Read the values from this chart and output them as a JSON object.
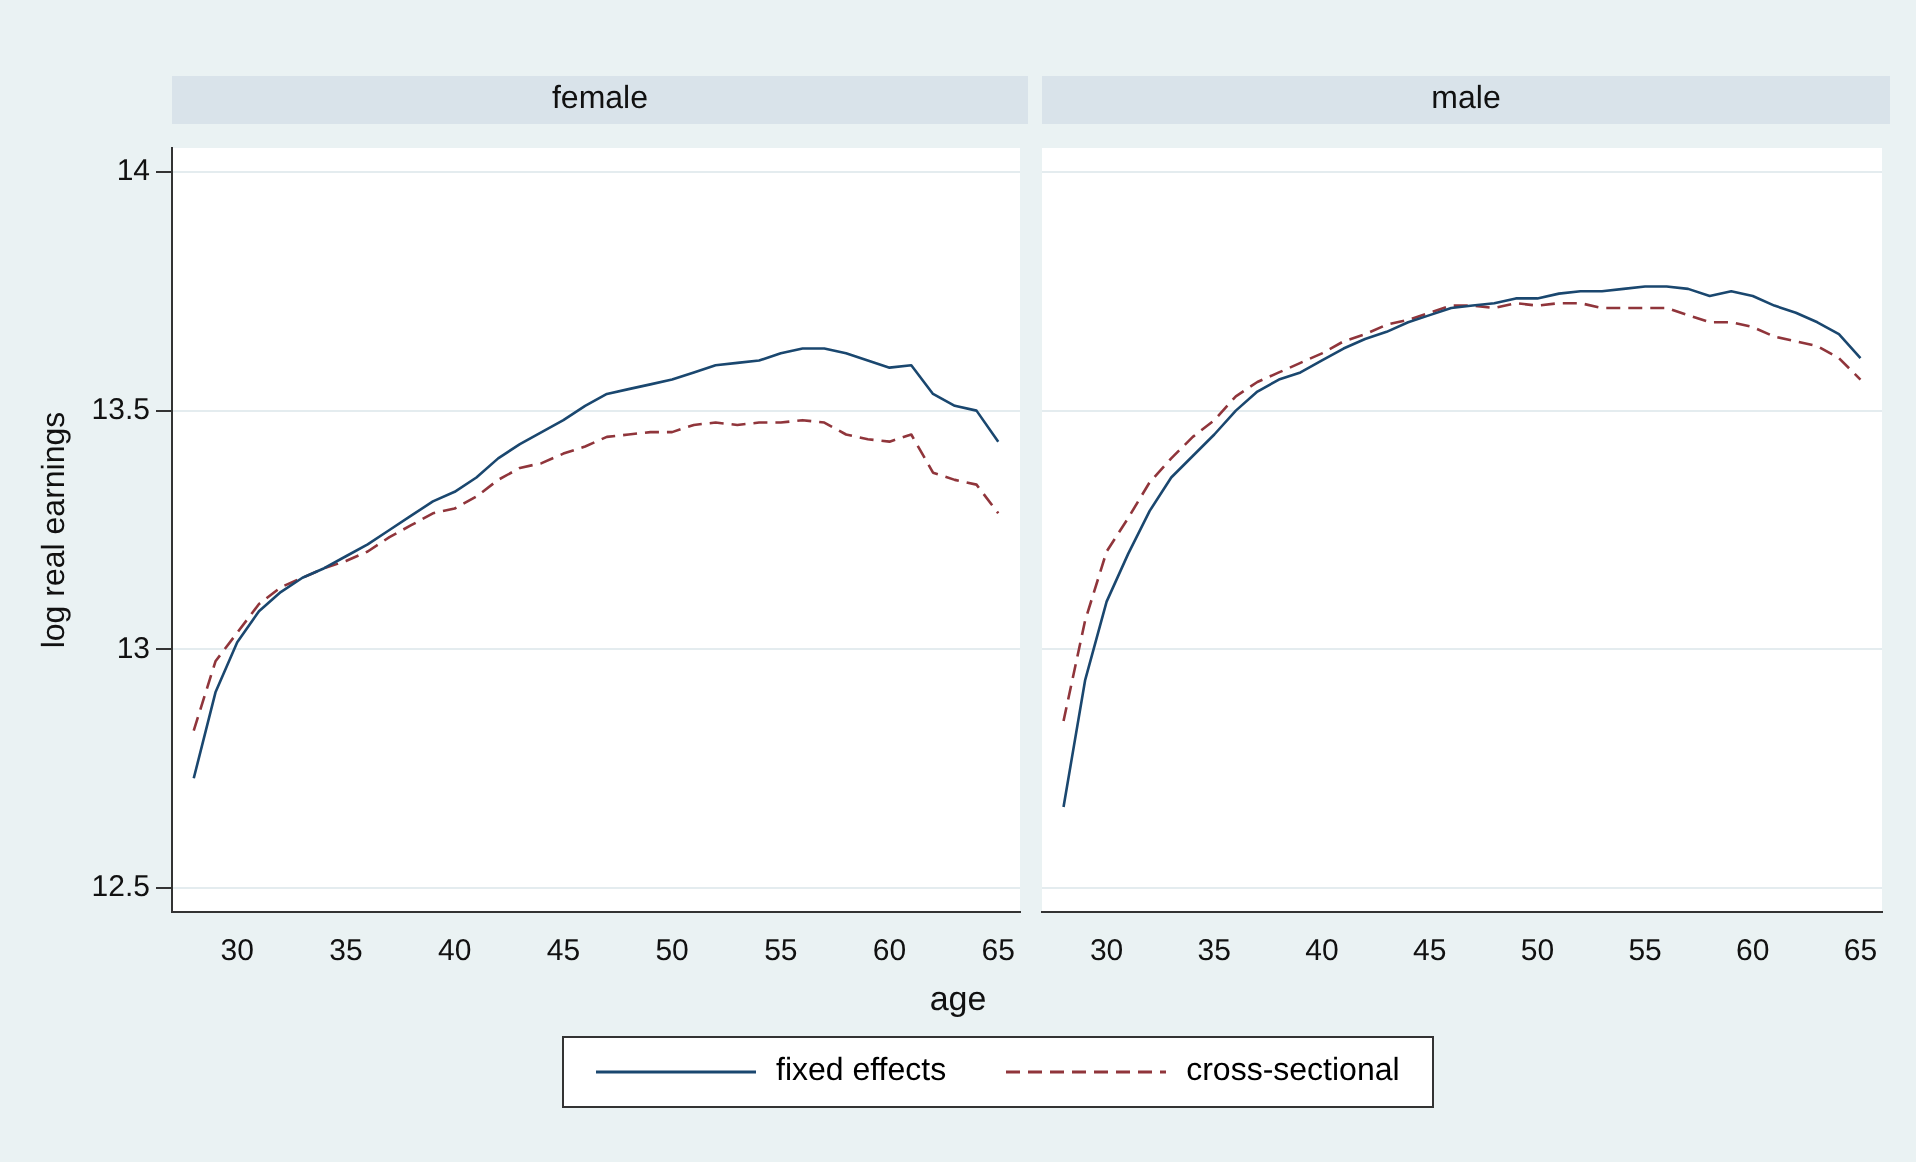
{
  "chart_data": [
    {
      "type": "line",
      "title": "female",
      "xlabel": "age",
      "ylabel": "log real earnings",
      "x": [
        28,
        29,
        30,
        31,
        32,
        33,
        34,
        35,
        36,
        37,
        38,
        39,
        40,
        41,
        42,
        43,
        44,
        45,
        46,
        47,
        48,
        49,
        50,
        51,
        52,
        53,
        54,
        55,
        56,
        57,
        58,
        59,
        60,
        61,
        62,
        63,
        64,
        65
      ],
      "series": [
        {
          "name": "fixed effects",
          "color": "#1a476f",
          "line_style": "solid",
          "values": [
            12.73,
            12.91,
            13.015,
            13.08,
            13.12,
            13.15,
            13.17,
            13.195,
            13.22,
            13.25,
            13.28,
            13.31,
            13.33,
            13.36,
            13.4,
            13.43,
            13.455,
            13.48,
            13.51,
            13.535,
            13.545,
            13.555,
            13.565,
            13.58,
            13.595,
            13.6,
            13.605,
            13.62,
            13.63,
            13.63,
            13.62,
            13.605,
            13.59,
            13.595,
            13.535,
            13.51,
            13.5,
            13.435
          ]
        },
        {
          "name": "cross-sectional",
          "color": "#90353b",
          "line_style": "dashed",
          "values": [
            12.83,
            12.975,
            13.035,
            13.095,
            13.13,
            13.15,
            13.17,
            13.185,
            13.205,
            13.235,
            13.26,
            13.285,
            13.295,
            13.32,
            13.355,
            13.38,
            13.39,
            13.41,
            13.425,
            13.445,
            13.45,
            13.455,
            13.455,
            13.47,
            13.475,
            13.47,
            13.475,
            13.475,
            13.48,
            13.475,
            13.45,
            13.44,
            13.435,
            13.45,
            13.37,
            13.355,
            13.345,
            13.285
          ]
        }
      ],
      "xlim": [
        27,
        66
      ],
      "xticks": [
        30,
        35,
        40,
        45,
        50,
        55,
        60,
        65
      ],
      "ylim": [
        12.45,
        14.05
      ],
      "yticks": [
        12.5,
        13,
        13.5,
        14
      ],
      "grid": "y",
      "marker": "none",
      "legend": "bottom"
    },
    {
      "type": "line",
      "title": "male",
      "x": [
        28,
        29,
        30,
        31,
        32,
        33,
        34,
        35,
        36,
        37,
        38,
        39,
        40,
        41,
        42,
        43,
        44,
        45,
        46,
        47,
        48,
        49,
        50,
        51,
        52,
        53,
        54,
        55,
        56,
        57,
        58,
        59,
        60,
        61,
        62,
        63,
        64,
        65
      ],
      "series": [
        {
          "name": "fixed effects",
          "color": "#1a476f",
          "line_style": "solid",
          "values": [
            12.67,
            12.935,
            13.1,
            13.2,
            13.29,
            13.36,
            13.405,
            13.45,
            13.5,
            13.54,
            13.565,
            13.58,
            13.605,
            13.63,
            13.65,
            13.665,
            13.685,
            13.7,
            13.715,
            13.72,
            13.725,
            13.735,
            13.735,
            13.745,
            13.75,
            13.75,
            13.755,
            13.76,
            13.76,
            13.755,
            13.74,
            13.75,
            13.74,
            13.72,
            13.705,
            13.685,
            13.66,
            13.61
          ]
        },
        {
          "name": "cross-sectional",
          "color": "#90353b",
          "line_style": "dashed",
          "values": [
            12.85,
            13.06,
            13.205,
            13.275,
            13.35,
            13.4,
            13.445,
            13.48,
            13.53,
            13.56,
            13.58,
            13.6,
            13.62,
            13.645,
            13.66,
            13.68,
            13.69,
            13.705,
            13.72,
            13.72,
            13.715,
            13.725,
            13.72,
            13.725,
            13.725,
            13.715,
            13.715,
            13.715,
            13.715,
            13.7,
            13.685,
            13.685,
            13.675,
            13.655,
            13.645,
            13.635,
            13.61,
            13.565
          ]
        }
      ],
      "xlim": [
        27,
        66
      ],
      "xticks": [
        30,
        35,
        40,
        45,
        50,
        55,
        60,
        65
      ],
      "ylim": [
        12.45,
        14.05
      ],
      "yticks": [
        12.5,
        13,
        13.5,
        14
      ],
      "grid": "y",
      "marker": "none",
      "legend": "bottom",
      "tick_labels": "x"
    }
  ]
}
